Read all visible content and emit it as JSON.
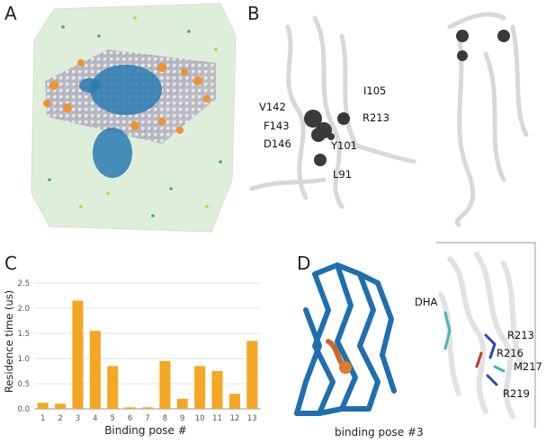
{
  "panels": {
    "a": {
      "label": "A"
    },
    "b": {
      "label": "B",
      "residues": [
        "V142",
        "I105",
        "F143",
        "R213",
        "D146",
        "Y101",
        "L91"
      ]
    },
    "c": {
      "label": "C"
    },
    "d": {
      "label": "D",
      "caption": "binding pose #3",
      "residues": [
        "DHA",
        "R213",
        "R216",
        "M217",
        "R219"
      ]
    }
  },
  "colors": {
    "bars": "#f5a623",
    "membrane_blue": "#2a7bb0",
    "lipid_orange": "#f0932c",
    "lipid_grey": "#c8c8d0",
    "box_green": "#cfe5c8",
    "ribbon_white": "#f2f2f2",
    "ribbon_blue": "#1f6fae"
  },
  "chart_data": {
    "type": "bar",
    "title": "",
    "xlabel": "Binding pose #",
    "ylabel": "Residence time (us)",
    "categories": [
      "1",
      "2",
      "3",
      "4",
      "5",
      "6",
      "7",
      "8",
      "9",
      "10",
      "11",
      "12",
      "13"
    ],
    "values": [
      0.12,
      0.1,
      2.15,
      1.55,
      0.85,
      0.03,
      0.03,
      0.95,
      0.2,
      0.85,
      0.75,
      0.3,
      1.35
    ],
    "ylim": [
      0,
      2.5
    ],
    "yticks": [
      "0.0",
      "0.5",
      "1.0",
      "1.5",
      "2.0",
      "2.5"
    ],
    "grid": true
  }
}
